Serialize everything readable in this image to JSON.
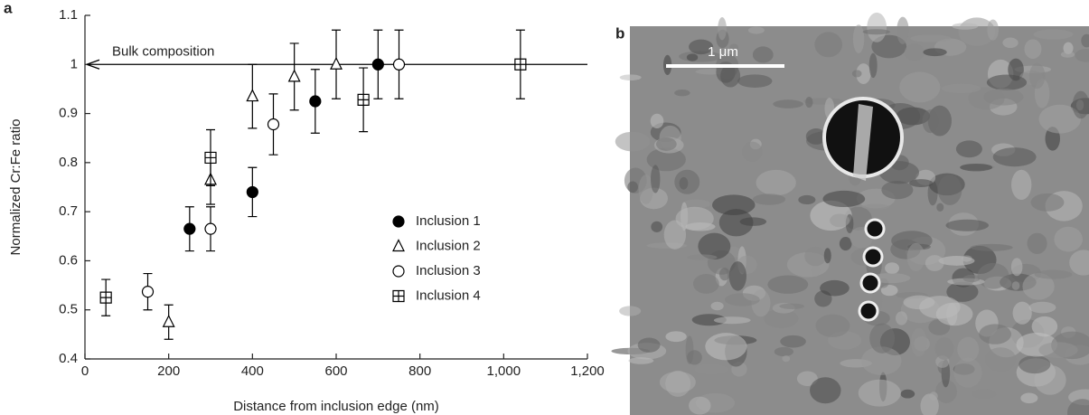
{
  "chart_data": {
    "type": "scatter",
    "panel_label": "a",
    "xlabel": "Distance from inclusion edge (nm)",
    "ylabel": "Normalized Cr:Fe ratio",
    "xlim": [
      0,
      1200
    ],
    "ylim": [
      0.4,
      1.1
    ],
    "xticks": [
      0,
      200,
      400,
      600,
      800,
      {
        "value": 1000,
        "label": "1,000"
      },
      {
        "value": 1200,
        "label": "1,200"
      }
    ],
    "yticks": [
      0.4,
      0.5,
      0.6,
      0.7,
      0.8,
      0.9,
      1,
      1.1
    ],
    "reference_line": {
      "y": 1,
      "label": "Bulk composition"
    },
    "series": [
      {
        "name": "Inclusion 1",
        "marker": "filled-circle",
        "color": "#000000",
        "x": [
          250,
          400,
          550,
          700
        ],
        "values": [
          0.665,
          0.74,
          0.925,
          1.0
        ],
        "errors": [
          0.045,
          0.05,
          0.065,
          0.07
        ]
      },
      {
        "name": "Inclusion 2",
        "marker": "triangle",
        "color": "#000000",
        "x": [
          200,
          300,
          400,
          500,
          600
        ],
        "values": [
          0.475,
          0.765,
          0.935,
          0.975,
          1.0
        ],
        "errors": [
          0.035,
          0.05,
          0.065,
          0.068,
          0.07
        ]
      },
      {
        "name": "Inclusion 3",
        "marker": "circle",
        "color": "#000000",
        "x": [
          150,
          300,
          450,
          750
        ],
        "values": [
          0.537,
          0.665,
          0.878,
          1.0
        ],
        "errors": [
          0.037,
          0.045,
          0.062,
          0.07
        ]
      },
      {
        "name": "Inclusion 4",
        "marker": "square-plus",
        "color": "#000000",
        "x": [
          50,
          300,
          665,
          1040
        ],
        "values": [
          0.525,
          0.81,
          0.928,
          1.0
        ],
        "errors": [
          0.037,
          0.057,
          0.065,
          0.07
        ]
      }
    ]
  },
  "image_panel": {
    "label": "b",
    "scale_bar": "1 μm"
  }
}
